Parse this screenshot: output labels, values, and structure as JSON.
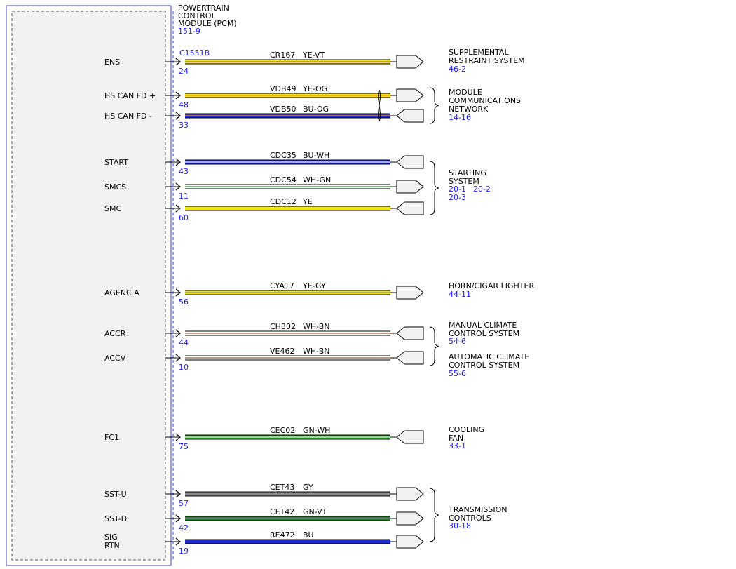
{
  "module": {
    "title_lines": [
      "POWERTRAIN",
      "CONTROL",
      "MODULE (PCM)"
    ],
    "ref": "151-9",
    "connector": "C1551B"
  },
  "colors": {
    "YE": "#f2e600",
    "VT": "#9b59b6",
    "OG": "#f39c12",
    "BU": "#1f2ad6",
    "WH": "#ffffff",
    "GN": "#1e8a1e",
    "GY": "#8a8a8a",
    "BN": "#a0522d",
    "line": "#000000",
    "link": "#1a1aff",
    "module_border": "#3a3ae0",
    "module_fill": "#f2f2f2"
  },
  "pins": [
    {
      "signal": "ENS",
      "pin": "24",
      "circuit": "CR167",
      "color": "YE-VT",
      "dir": "out"
    },
    {
      "signal": "HS CAN FD +",
      "pin": "48",
      "circuit": "VDB49",
      "color": "YE-OG",
      "dir": "out"
    },
    {
      "signal": "HS CAN FD -",
      "pin": "33",
      "circuit": "VDB50",
      "color": "BU-OG",
      "dir": "in"
    },
    {
      "signal": "START",
      "pin": "43",
      "circuit": "CDC35",
      "color": "BU-WH",
      "dir": "in"
    },
    {
      "signal": "SMCS",
      "pin": "11",
      "circuit": "CDC54",
      "color": "WH-GN",
      "dir": "out"
    },
    {
      "signal": "SMC",
      "pin": "60",
      "circuit": "CDC12",
      "color": "YE",
      "dir": "in"
    },
    {
      "signal": "AGENC A",
      "pin": "56",
      "circuit": "CYA17",
      "color": "YE-GY",
      "dir": "out"
    },
    {
      "signal": "ACCR",
      "pin": "44",
      "circuit": "CH302",
      "color": "WH-BN",
      "dir": "in"
    },
    {
      "signal": "ACCV",
      "pin": "10",
      "circuit": "VE462",
      "color": "WH-BN",
      "dir": "in"
    },
    {
      "signal": "FC1",
      "pin": "75",
      "circuit": "CEC02",
      "color": "GN-WH",
      "dir": "in"
    },
    {
      "signal": "SST-U",
      "pin": "57",
      "circuit": "CET43",
      "color": "GY",
      "dir": "out"
    },
    {
      "signal": "SST-D",
      "pin": "42",
      "circuit": "CET42",
      "color": "GN-VT",
      "dir": "out"
    },
    {
      "signal": "SIG RTN",
      "pin": "19",
      "circuit": "RE472",
      "color": "BU",
      "dir": "out"
    }
  ],
  "destinations": [
    {
      "label_lines": [
        "SUPPLEMENTAL",
        "RESTRAINT SYSTEM"
      ],
      "refs": [
        "46-2"
      ]
    },
    {
      "label_lines": [
        "MODULE",
        "COMMUNICATIONS",
        "NETWORK"
      ],
      "refs": [
        "14-16"
      ]
    },
    {
      "label_lines": [
        "STARTING",
        "SYSTEM"
      ],
      "refs": [
        "20-1",
        "20-2",
        "20-3"
      ]
    },
    {
      "label_lines": [
        "HORN/CIGAR LIGHTER"
      ],
      "refs": [
        "44-11"
      ]
    },
    {
      "label_lines": [
        "MANUAL CLIMATE",
        "CONTROL SYSTEM"
      ],
      "refs": [
        "54-6"
      ]
    },
    {
      "label_lines": [
        "AUTOMATIC CLIMATE",
        "CONTROL SYSTEM"
      ],
      "refs": [
        "55-6"
      ]
    },
    {
      "label_lines": [
        "COOLING",
        "FAN"
      ],
      "refs": [
        "33-1"
      ]
    },
    {
      "label_lines": [
        "TRANSMISSION",
        "CONTROLS"
      ],
      "refs": [
        "30-18"
      ]
    }
  ]
}
